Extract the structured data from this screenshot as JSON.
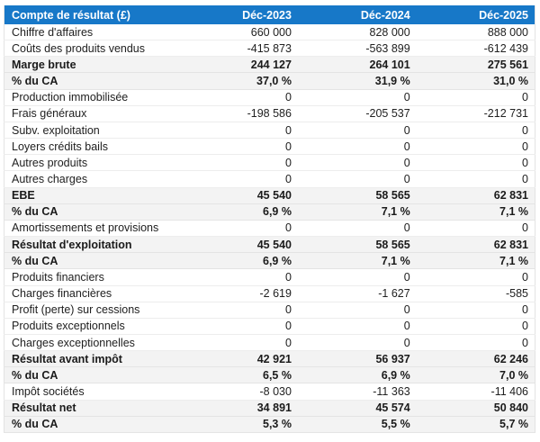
{
  "colors": {
    "header_bg": "#1778c8",
    "header_text": "#ffffff",
    "subtotal_row_bg": "#f3f3f3",
    "row_border": "#ededed",
    "text": "#212121"
  },
  "table": {
    "header": {
      "label": "Compte de résultat (£)",
      "columns": [
        "Déc-2023",
        "Déc-2024",
        "Déc-2025"
      ]
    },
    "rows": [
      {
        "label": "Chiffre d'affaires",
        "values": [
          "660 000",
          "828 000",
          "888 000"
        ],
        "style": "normal"
      },
      {
        "label": "Coûts des produits vendus",
        "values": [
          "-415 873",
          "-563 899",
          "-612 439"
        ],
        "style": "normal"
      },
      {
        "label": "Marge brute",
        "values": [
          "244 127",
          "264 101",
          "275 561"
        ],
        "style": "subtotal"
      },
      {
        "label": "% du CA",
        "values": [
          "37,0 %",
          "31,9 %",
          "31,0 %"
        ],
        "style": "subtotal"
      },
      {
        "label": "Production immobilisée",
        "values": [
          "0",
          "0",
          "0"
        ],
        "style": "normal"
      },
      {
        "label": "Frais généraux",
        "values": [
          "-198 586",
          "-205 537",
          "-212 731"
        ],
        "style": "normal"
      },
      {
        "label": "Subv. exploitation",
        "values": [
          "0",
          "0",
          "0"
        ],
        "style": "normal"
      },
      {
        "label": "Loyers crédits bails",
        "values": [
          "0",
          "0",
          "0"
        ],
        "style": "normal"
      },
      {
        "label": "Autres produits",
        "values": [
          "0",
          "0",
          "0"
        ],
        "style": "normal"
      },
      {
        "label": "Autres charges",
        "values": [
          "0",
          "0",
          "0"
        ],
        "style": "normal"
      },
      {
        "label": "EBE",
        "values": [
          "45 540",
          "58 565",
          "62 831"
        ],
        "style": "subtotal"
      },
      {
        "label": "% du CA",
        "values": [
          "6,9 %",
          "7,1 %",
          "7,1 %"
        ],
        "style": "subtotal"
      },
      {
        "label": "Amortissements et provisions",
        "values": [
          "0",
          "0",
          "0"
        ],
        "style": "normal"
      },
      {
        "label": "Résultat d'exploitation",
        "values": [
          "45 540",
          "58 565",
          "62 831"
        ],
        "style": "subtotal"
      },
      {
        "label": "% du CA",
        "values": [
          "6,9 %",
          "7,1 %",
          "7,1 %"
        ],
        "style": "subtotal"
      },
      {
        "label": "Produits financiers",
        "values": [
          "0",
          "0",
          "0"
        ],
        "style": "normal"
      },
      {
        "label": "Charges financières",
        "values": [
          "-2 619",
          "-1 627",
          "-585"
        ],
        "style": "normal"
      },
      {
        "label": "Profit (perte) sur cessions",
        "values": [
          "0",
          "0",
          "0"
        ],
        "style": "normal"
      },
      {
        "label": "Produits exceptionnels",
        "values": [
          "0",
          "0",
          "0"
        ],
        "style": "normal"
      },
      {
        "label": "Charges exceptionnelles",
        "values": [
          "0",
          "0",
          "0"
        ],
        "style": "normal"
      },
      {
        "label": "Résultat avant impôt",
        "values": [
          "42 921",
          "56 937",
          "62 246"
        ],
        "style": "subtotal"
      },
      {
        "label": "% du CA",
        "values": [
          "6,5 %",
          "6,9 %",
          "7,0 %"
        ],
        "style": "subtotal"
      },
      {
        "label": "Impôt sociétés",
        "values": [
          "-8 030",
          "-11 363",
          "-11 406"
        ],
        "style": "normal"
      },
      {
        "label": "Résultat net",
        "values": [
          "34 891",
          "45 574",
          "50 840"
        ],
        "style": "subtotal"
      },
      {
        "label": "% du CA",
        "values": [
          "5,3 %",
          "5,5 %",
          "5,7 %"
        ],
        "style": "subtotal"
      }
    ]
  }
}
